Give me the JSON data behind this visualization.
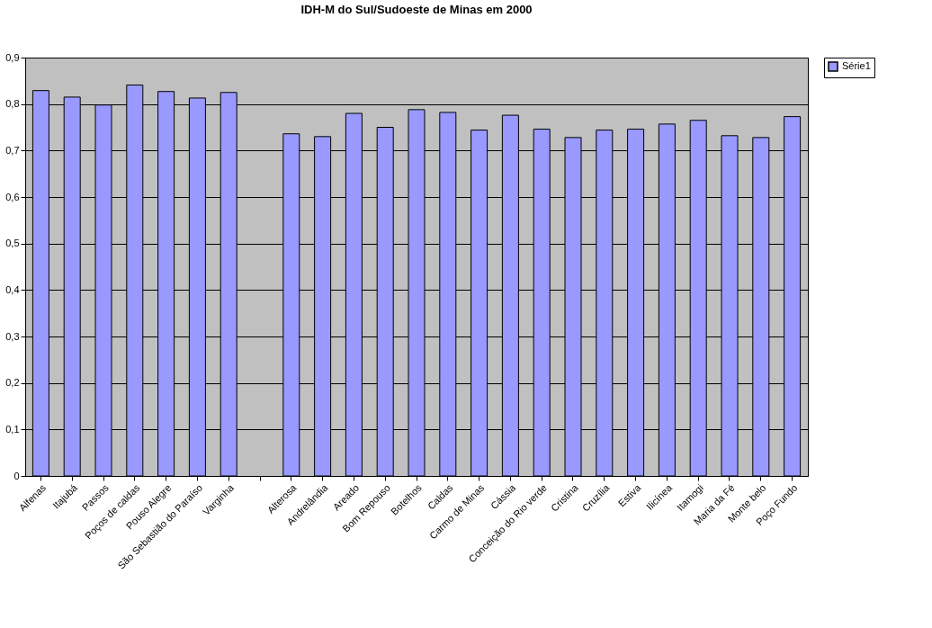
{
  "chart_data": {
    "type": "bar",
    "title": "IDH-M do Sul/Sudoeste de Minas em 2000",
    "categories": [
      "Alfenas",
      "Itajubá",
      "Passos",
      "Poços de caldas",
      "Pouso Alegre",
      "São Sebastião do Paraíso",
      "Varginha",
      null,
      "Alterosa",
      "Andrelândia",
      "Areado",
      "Bom Repouso",
      "Botelhos",
      "Caldas",
      "Carmo de Minas",
      "Cássia",
      "Conceição do Rio verde",
      "Cristina",
      "Cruzília",
      "Estiva",
      "Ilicínea",
      "Itamogi",
      "Maria da Fé",
      "Monte belo",
      "Poço Fundo"
    ],
    "series": [
      {
        "name": "Série1",
        "color": "#9999ff",
        "values": [
          0.829,
          0.815,
          0.798,
          0.841,
          0.827,
          0.813,
          0.825,
          null,
          0.736,
          0.73,
          0.78,
          0.75,
          0.788,
          0.782,
          0.744,
          0.776,
          0.746,
          0.728,
          0.744,
          0.746,
          0.757,
          0.765,
          0.732,
          0.728,
          0.773
        ]
      }
    ],
    "ylim": [
      0,
      0.9
    ],
    "yticks": [
      {
        "value": 0,
        "label": "0"
      },
      {
        "value": 0.1,
        "label": "0,1"
      },
      {
        "value": 0.2,
        "label": "0,2"
      },
      {
        "value": 0.3,
        "label": "0,3"
      },
      {
        "value": 0.4,
        "label": "0,4"
      },
      {
        "value": 0.5,
        "label": "0,5"
      },
      {
        "value": 0.6,
        "label": "0,6"
      },
      {
        "value": 0.7,
        "label": "0,7"
      },
      {
        "value": 0.8,
        "label": "0,8"
      },
      {
        "value": 0.9,
        "label": "0,9"
      }
    ],
    "grid": "y",
    "legend": "right"
  }
}
